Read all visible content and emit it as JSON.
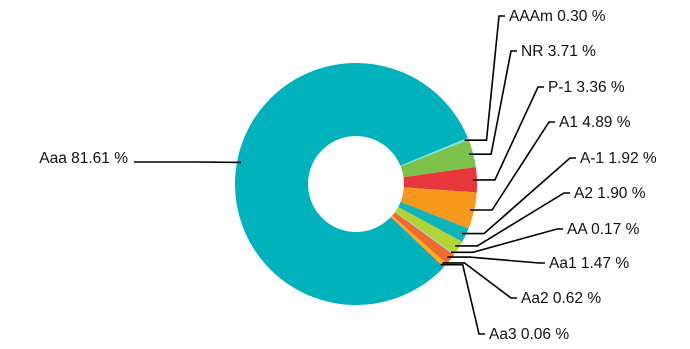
{
  "chart_data": {
    "type": "pie",
    "variant": "donut",
    "legend": "none",
    "slices": [
      {
        "label": "AAAm",
        "value": 0.3,
        "display": "AAAm 0.30 %",
        "color": "#7fe3e8"
      },
      {
        "label": "NR",
        "value": 3.71,
        "display": "NR 3.71 %",
        "color": "#7cc24a"
      },
      {
        "label": "P-1",
        "value": 3.36,
        "display": "P-1 3.36 %",
        "color": "#e8363d"
      },
      {
        "label": "A1",
        "value": 4.89,
        "display": "A1 4.89 %",
        "color": "#f7981d"
      },
      {
        "label": "A-1",
        "value": 1.92,
        "display": "A-1 1.92 %",
        "color": "#11b3b8"
      },
      {
        "label": "A2",
        "value": 1.9,
        "display": "A2 1.90 %",
        "color": "#b4d334"
      },
      {
        "label": "AA",
        "value": 0.17,
        "display": "AA 0.17 %",
        "color": "#8dd7e5"
      },
      {
        "label": "Aa1",
        "value": 1.47,
        "display": "Aa1 1.47 %",
        "color": "#f26a2e"
      },
      {
        "label": "Aa2",
        "value": 0.62,
        "display": "Aa2 0.62 %",
        "color": "#f7b11b"
      },
      {
        "label": "Aa3",
        "value": 0.06,
        "display": "Aa3 0.06 %",
        "color": "#6c2a7a"
      },
      {
        "label": "Aaa",
        "value": 81.61,
        "display": "Aaa 81.61 %",
        "color": "#00b2bb"
      }
    ]
  }
}
